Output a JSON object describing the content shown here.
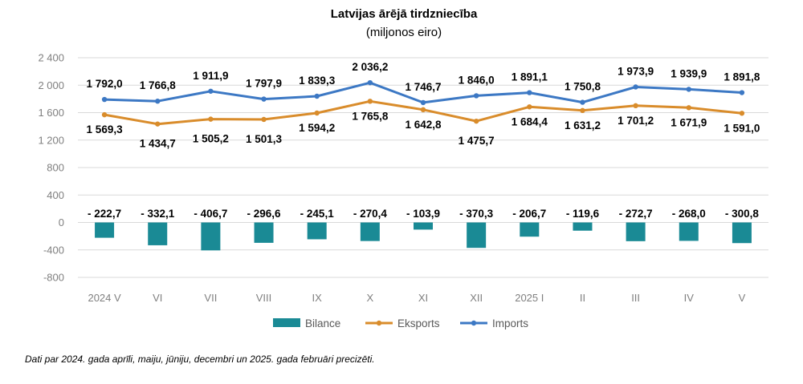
{
  "chart_data": {
    "type": "bar+line",
    "title": "Latvijas ārējā tirdzniecība",
    "subtitle": "(miljonos eiro)",
    "categories": [
      "2024 V",
      "VI",
      "VII",
      "VIII",
      "IX",
      "X",
      "XI",
      "XII",
      "2025 I",
      "II",
      "III",
      "IV",
      "V"
    ],
    "y_ticks": [
      "2 400",
      "2 000",
      "1 600",
      "1 200",
      "800",
      "400",
      "0",
      "-400",
      "-800"
    ],
    "ylim": [
      -800,
      2400
    ],
    "grid": true,
    "legend_position": "bottom",
    "series": [
      {
        "name": "Bilance",
        "kind": "bar",
        "color": "#1a8a95",
        "values": [
          -222.7,
          -332.1,
          -406.7,
          -296.6,
          -245.1,
          -270.4,
          -103.9,
          -370.3,
          -206.7,
          -119.6,
          -272.7,
          -268.0,
          -300.8
        ],
        "labels": [
          "- 222,7",
          "- 332,1",
          "- 406,7",
          "- 296,6",
          "- 245,1",
          "- 270,4",
          "- 103,9",
          "- 370,3",
          "- 206,7",
          "- 119,6",
          "- 272,7",
          "- 268,0",
          "- 300,8"
        ]
      },
      {
        "name": "Eksports",
        "kind": "line",
        "color": "#d98c2b",
        "values": [
          1569.3,
          1434.7,
          1505.2,
          1501.3,
          1594.2,
          1765.8,
          1642.8,
          1475.7,
          1684.4,
          1631.2,
          1701.2,
          1671.9,
          1591.0
        ],
        "labels": [
          "1 569,3",
          "1 434,7",
          "1 505,2",
          "1 501,3",
          "1 594,2",
          "1 765,8",
          "1 642,8",
          "1 475,7",
          "1 684,4",
          "1 631,2",
          "1 701,2",
          "1 671,9",
          "1 591,0"
        ]
      },
      {
        "name": "Imports",
        "kind": "line",
        "color": "#3c78c4",
        "values": [
          1792.0,
          1766.8,
          1911.9,
          1797.9,
          1839.3,
          2036.2,
          1746.7,
          1846.0,
          1891.1,
          1750.8,
          1973.9,
          1939.9,
          1891.8
        ],
        "labels": [
          "1 792,0",
          "1 766,8",
          "1 911,9",
          "1 797,9",
          "1 839,3",
          "2 036,2",
          "1 746,7",
          "1 846,0",
          "1 891,1",
          "1 750,8",
          "1 973,9",
          "1 939,9",
          "1 891,8"
        ]
      }
    ]
  },
  "footnote": "Dati par 2024. gada aprīli, maiju, jūniju, decembri un 2025. gada februāri precizēti."
}
